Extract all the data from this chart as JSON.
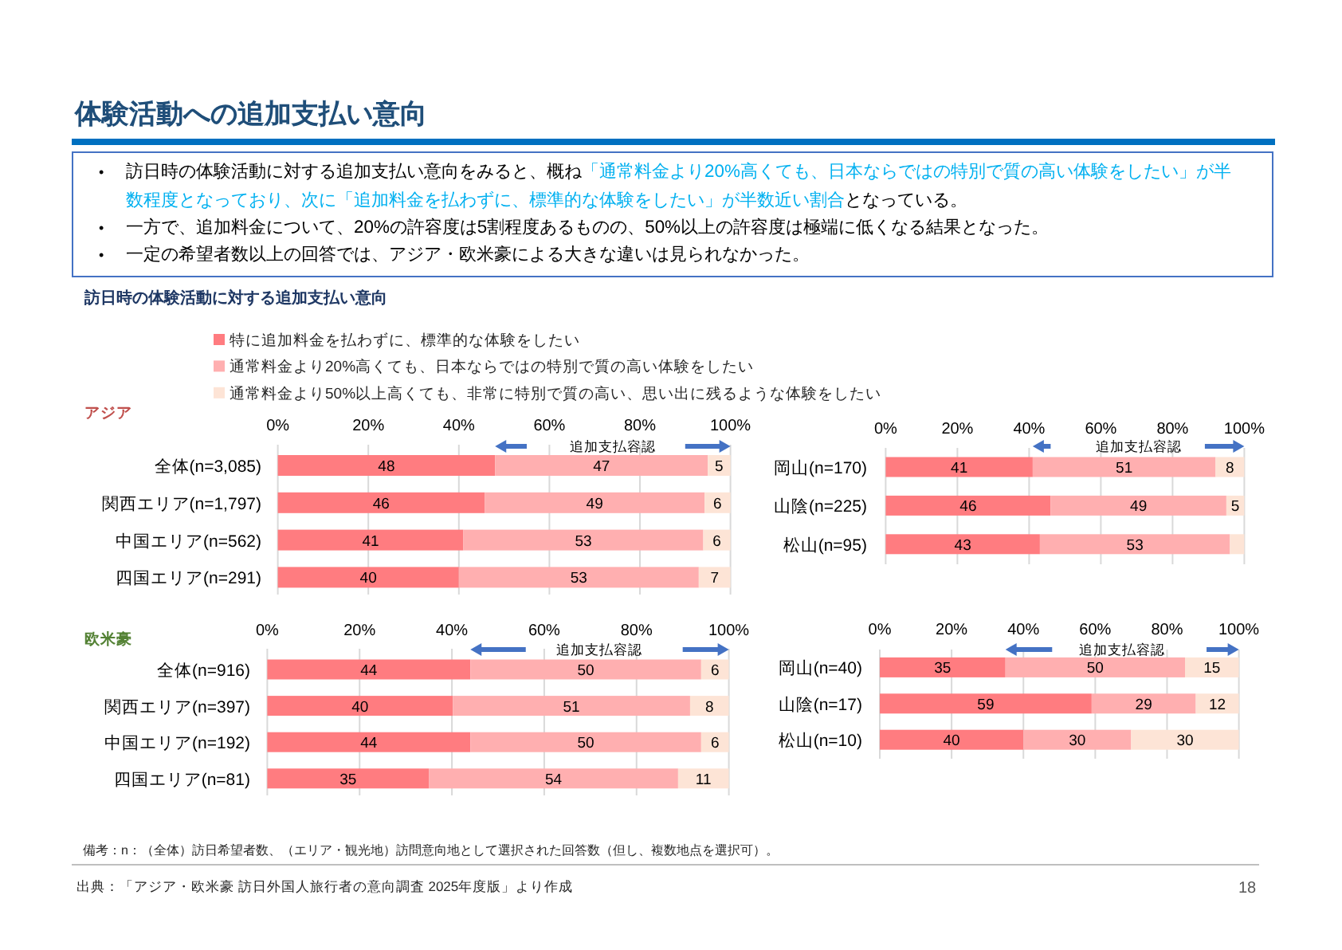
{
  "chart_data": [
    {
      "type": "bar",
      "orientation": "horizontal",
      "stacked": true,
      "title": "体験活動への追加支払い意向",
      "subtitle": "訪日時の体験活動に対する追加支払い意向",
      "categories": [
        "全体(n=3,085)",
        "関西エリア(n=1,797)",
        "中国エリア(n=562)",
        "四国エリア(n=291)"
      ],
      "series": [
        {
          "name": "特に追加料金を払わずに、標準的な体験をしたい",
          "color": "#ff7c80",
          "values": [
            48,
            45.7,
            41,
            40
          ],
          "value_labels": [
            "48",
            "46",
            "41",
            "40"
          ]
        },
        {
          "name": "通常料金より20%高くても、日本ならではの特別で質の高い体験をしたい",
          "color": "#ffafb0",
          "values": [
            47,
            48.6,
            53,
            53
          ],
          "value_labels": [
            "47",
            "49",
            "53",
            "53"
          ]
        },
        {
          "name": "通常料金より50%以上高くても、非常に特別で質の高い、思い出に残るような体験をしたい",
          "color": "#fde4d6",
          "values": [
            5,
            5.7,
            6,
            7
          ],
          "value_labels": [
            "5",
            "6",
            "6",
            "7"
          ]
        }
      ],
      "xlim": [
        0,
        100
      ],
      "xticks": [
        {
          "value": 0,
          "label": "0%"
        },
        {
          "value": 20,
          "label": "20%"
        },
        {
          "value": 40,
          "label": "40%"
        },
        {
          "value": 60,
          "label": "60%"
        },
        {
          "value": 80,
          "label": "80%"
        },
        {
          "value": 100,
          "label": "100%"
        }
      ],
      "grid": "x",
      "legend": "top",
      "annotations": [
        "•",
        "訪日時の体験活動に対する追加支払い意向をみると、概ね",
        "「通常料金より20%高くても、日本ならではの特別で質の高い体験をしたい」が半",
        "数程度となっており、次に「追加料金を払わずに、標準的な体験をしたい」が半数近い割合",
        "となっている。",
        "•",
        "一方で、追加料金について、20%の許容度は5割程度あるものの、50%以上の許容度は極端に低くなる結果となった。",
        "•",
        "一定の希望者数以上の回答では、アジア・欧米豪による大きな違いは見られなかった。",
        "アジア",
        "追加支払容認"
      ]
    },
    {
      "type": "bar",
      "orientation": "horizontal",
      "stacked": true,
      "categories": [
        "岡山(n=170)",
        "山陰(n=225)",
        "松山(n=95)"
      ],
      "series": [
        {
          "color": "#ff7c80",
          "values": [
            41,
            46,
            43
          ],
          "value_labels": [
            "41",
            "46",
            "43"
          ]
        },
        {
          "color": "#ffafb0",
          "values": [
            51,
            49,
            53
          ],
          "value_labels": [
            "51",
            "49",
            "53"
          ]
        },
        {
          "color": "#fde4d6",
          "values": [
            8,
            5,
            4
          ],
          "value_labels": [
            "8",
            "5",
            null
          ]
        }
      ],
      "xlim": [
        0,
        100
      ],
      "xticks": [
        {
          "value": 0,
          "label": "0%"
        },
        {
          "value": 20,
          "label": "20%"
        },
        {
          "value": 40,
          "label": "40%"
        },
        {
          "value": 60,
          "label": "60%"
        },
        {
          "value": 80,
          "label": "80%"
        },
        {
          "value": 100,
          "label": "100%"
        }
      ],
      "grid": "x",
      "annotations": [
        "追加支払容認"
      ]
    },
    {
      "type": "bar",
      "orientation": "horizontal",
      "stacked": true,
      "categories": [
        "全体(n=916)",
        "関西エリア(n=397)",
        "中国エリア(n=192)",
        "四国エリア(n=81)"
      ],
      "series": [
        {
          "color": "#ff7c80",
          "values": [
            44,
            40.2,
            44,
            35
          ],
          "value_labels": [
            "44",
            "40",
            "44",
            "35"
          ]
        },
        {
          "color": "#ffafb0",
          "values": [
            50,
            51.4,
            50,
            54
          ],
          "value_labels": [
            "50",
            "51",
            "50",
            "54"
          ]
        },
        {
          "color": "#fde4d6",
          "values": [
            6,
            8.4,
            6,
            11
          ],
          "value_labels": [
            "6",
            "8",
            "6",
            "11"
          ]
        }
      ],
      "xlim": [
        0,
        100
      ],
      "xticks": [
        {
          "value": 0,
          "label": "0%"
        },
        {
          "value": 20,
          "label": "20%"
        },
        {
          "value": 40,
          "label": "40%"
        },
        {
          "value": 60,
          "label": "60%"
        },
        {
          "value": 80,
          "label": "80%"
        },
        {
          "value": 100,
          "label": "100%"
        }
      ],
      "grid": "x",
      "annotations": [
        "欧米豪",
        "追加支払容認",
        "備考：n：（全体）訪日希望者数、（エリア・観光地）訪問意向地として選択された回答数（但し、複数地点を選択可）。",
        "出典：「アジア・欧米豪 訪日外国人旅行者の意向調査 2025年度版」より作成"
      ]
    },
    {
      "type": "bar",
      "orientation": "horizontal",
      "stacked": true,
      "categories": [
        "岡山(n=40)",
        "山陰(n=17)",
        "松山(n=10)"
      ],
      "series": [
        {
          "color": "#ff7c80",
          "values": [
            35,
            59,
            40
          ],
          "value_labels": [
            "35",
            "59",
            "40"
          ]
        },
        {
          "color": "#ffafb0",
          "values": [
            50,
            29,
            30
          ],
          "value_labels": [
            "50",
            "29",
            "30"
          ]
        },
        {
          "color": "#fde4d6",
          "values": [
            15,
            12,
            30
          ],
          "value_labels": [
            "15",
            "12",
            "30"
          ]
        }
      ],
      "xlim": [
        0,
        100
      ],
      "xticks": [
        {
          "value": 0,
          "label": "0%"
        },
        {
          "value": 20,
          "label": "20%"
        },
        {
          "value": 40,
          "label": "40%"
        },
        {
          "value": 60,
          "label": "60%"
        },
        {
          "value": 80,
          "label": "80%"
        },
        {
          "value": 100,
          "label": "100%"
        }
      ],
      "grid": "x",
      "annotations": [
        "追加支払容認",
        "18"
      ]
    }
  ]
}
